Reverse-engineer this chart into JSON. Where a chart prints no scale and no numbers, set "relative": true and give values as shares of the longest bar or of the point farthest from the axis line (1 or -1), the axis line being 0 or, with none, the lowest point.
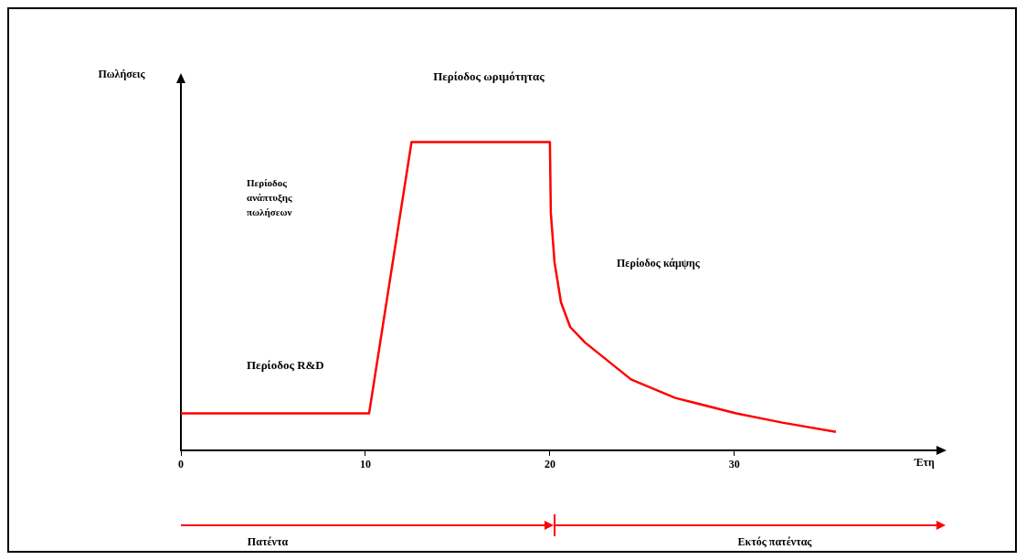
{
  "chart_data": {
    "type": "line",
    "relative": true,
    "xlabel": "Έτη",
    "annotations": [
      "Πωλήσεις",
      "Περίοδος ωριμότητας",
      "Περίοδος ανάπτυξης πωλήσεων",
      "Περίοδος κάμψης",
      "Περίοδος R&D",
      "Πατέντα",
      "Εκτός πατέντας"
    ],
    "xlim": [
      0,
      41
    ],
    "xticks": [
      0,
      10,
      20,
      30
    ],
    "grid": false,
    "legend": false,
    "marker": "none",
    "line_style": "solid",
    "series": [
      {
        "color": "#ff0000",
        "x": [
          0,
          10.2,
          12.5,
          20,
          20.05,
          20.25,
          20.6,
          21.1,
          21.9,
          24.4,
          26.8,
          30.1,
          32.6,
          35.5
        ],
        "values": [
          0.12,
          0.12,
          1,
          1,
          0.77,
          0.61,
          0.48,
          0.4,
          0.35,
          0.23,
          0.17,
          0.12,
          0.09,
          0.06
        ]
      }
    ]
  }
}
